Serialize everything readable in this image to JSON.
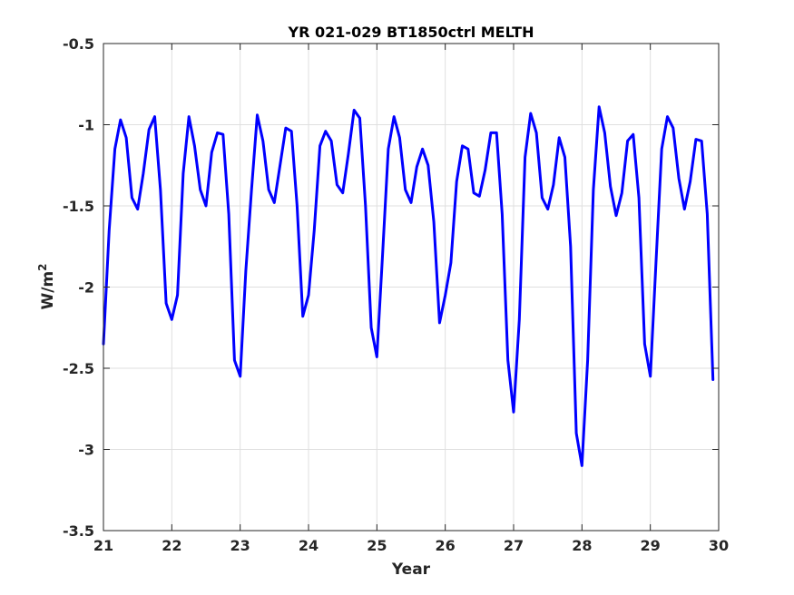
{
  "chart_data": {
    "type": "line",
    "title": "YR 021-029 BT1850ctrl MELTH",
    "xlabel": "Year",
    "ylabel": "W/m",
    "ylabel_superscript": "2",
    "xlim": [
      21,
      30
    ],
    "ylim": [
      -3.5,
      -0.5
    ],
    "xticks": [
      21,
      22,
      23,
      24,
      25,
      26,
      27,
      28,
      29,
      30
    ],
    "xtick_labels": [
      "21",
      "22",
      "23",
      "24",
      "25",
      "26",
      "27",
      "28",
      "29",
      "30"
    ],
    "yticks": [
      -0.5,
      -1,
      -1.5,
      -2,
      -2.5,
      -3,
      -3.5
    ],
    "ytick_labels": [
      "-0.5",
      "-1",
      "-1.5",
      "-2",
      "-2.5",
      "-3",
      "-3.5"
    ],
    "grid": true,
    "series": [
      {
        "color": "#0000ff",
        "x": [
          21.0,
          21.083,
          21.167,
          21.25,
          21.333,
          21.417,
          21.5,
          21.583,
          21.667,
          21.75,
          21.833,
          21.917,
          22.0,
          22.083,
          22.167,
          22.25,
          22.333,
          22.417,
          22.5,
          22.583,
          22.667,
          22.75,
          22.833,
          22.917,
          23.0,
          23.083,
          23.167,
          23.25,
          23.333,
          23.417,
          23.5,
          23.583,
          23.667,
          23.75,
          23.833,
          23.917,
          24.0,
          24.083,
          24.167,
          24.25,
          24.333,
          24.417,
          24.5,
          24.583,
          24.667,
          24.75,
          24.833,
          24.917,
          25.0,
          25.083,
          25.167,
          25.25,
          25.333,
          25.417,
          25.5,
          25.583,
          25.667,
          25.75,
          25.833,
          25.917,
          26.0,
          26.083,
          26.167,
          26.25,
          26.333,
          26.417,
          26.5,
          26.583,
          26.667,
          26.75,
          26.833,
          26.917,
          27.0,
          27.083,
          27.167,
          27.25,
          27.333,
          27.417,
          27.5,
          27.583,
          27.667,
          27.75,
          27.833,
          27.917,
          28.0,
          28.083,
          28.167,
          28.25,
          28.333,
          28.417,
          28.5,
          28.583,
          28.667,
          28.75,
          28.833,
          28.917,
          29.0,
          29.083,
          29.167,
          29.25,
          29.333,
          29.417,
          29.5,
          29.583,
          29.667,
          29.75,
          29.833,
          29.917
        ],
        "values": [
          -2.35,
          -1.65,
          -1.15,
          -0.97,
          -1.08,
          -1.45,
          -1.52,
          -1.3,
          -1.03,
          -0.95,
          -1.4,
          -2.1,
          -2.2,
          -2.05,
          -1.3,
          -0.95,
          -1.13,
          -1.4,
          -1.5,
          -1.17,
          -1.05,
          -1.06,
          -1.55,
          -2.45,
          -2.55,
          -1.9,
          -1.4,
          -0.94,
          -1.1,
          -1.4,
          -1.48,
          -1.25,
          -1.02,
          -1.04,
          -1.5,
          -2.18,
          -2.05,
          -1.65,
          -1.13,
          -1.04,
          -1.1,
          -1.37,
          -1.42,
          -1.18,
          -0.91,
          -0.96,
          -1.5,
          -2.25,
          -2.43,
          -1.8,
          -1.15,
          -0.95,
          -1.08,
          -1.4,
          -1.48,
          -1.26,
          -1.15,
          -1.25,
          -1.6,
          -2.22,
          -2.05,
          -1.85,
          -1.35,
          -1.13,
          -1.15,
          -1.42,
          -1.44,
          -1.28,
          -1.05,
          -1.05,
          -1.55,
          -2.45,
          -2.77,
          -2.2,
          -1.2,
          -0.93,
          -1.05,
          -1.45,
          -1.52,
          -1.37,
          -1.08,
          -1.2,
          -1.75,
          -2.9,
          -3.1,
          -2.45,
          -1.4,
          -0.89,
          -1.05,
          -1.38,
          -1.56,
          -1.42,
          -1.1,
          -1.06,
          -1.45,
          -2.35,
          -2.55,
          -1.85,
          -1.15,
          -0.95,
          -1.02,
          -1.33,
          -1.52,
          -1.35,
          -1.09,
          -1.1,
          -1.55,
          -2.57
        ]
      }
    ]
  }
}
